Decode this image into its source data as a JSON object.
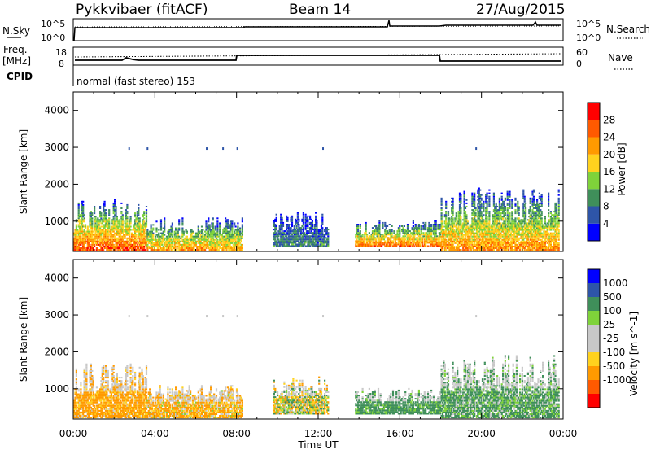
{
  "header": {
    "station": "Pykkvibaer (fitACF)",
    "beam": "Beam 14",
    "date": "27/Aug/2015"
  },
  "top_panel": {
    "left_label": "N.Sky",
    "right_label": "N.Search",
    "left_ticks": [
      "10^5",
      "10^0"
    ],
    "right_ticks": [
      "10^5",
      "10^0"
    ]
  },
  "freq_panel": {
    "left_label_1": "Freq.",
    "left_label_2": "[MHz]",
    "right_label": "Nave",
    "left_ticks": [
      "18",
      "8"
    ],
    "right_ticks": [
      "60",
      "0"
    ],
    "cpid_label": "CPID",
    "cpid_text": "normal (fast stereo) 153"
  },
  "colors": {
    "power_scale": [
      "#0000ff",
      "#2e55a8",
      "#3f8f5a",
      "#7fd33a",
      "#ffd21e",
      "#ff9a00",
      "#ff5a00",
      "#ff0000"
    ],
    "velocity_scale": [
      "#ff0000",
      "#ff5a00",
      "#ff9a00",
      "#ffd21e",
      "#c8c8c8",
      "#c8c8c8",
      "#7fd33a",
      "#3f8f5a",
      "#2e55a8",
      "#0000ff"
    ]
  },
  "chart_data": [
    {
      "type": "heatmap",
      "panel": "power",
      "ylabel": "Slant Range [km]",
      "yticks": [
        "1000",
        "2000",
        "3000",
        "4000"
      ],
      "ylim": [
        180,
        4500
      ],
      "xlim": [
        0,
        24
      ],
      "colorbar_label": "Power [dB]",
      "colorbar_ticks": [
        "4",
        "8",
        "12",
        "16",
        "20",
        "24",
        "28"
      ],
      "colorbar_range": [
        0,
        32
      ],
      "echo_regions": [
        {
          "t_start": 0.0,
          "t_end": 3.6,
          "r_low": 200,
          "r_high": 1600,
          "intensity": 0.75
        },
        {
          "t_start": 3.6,
          "t_end": 8.3,
          "r_low": 200,
          "r_high": 1100,
          "intensity": 0.6
        },
        {
          "t_start": 9.8,
          "t_end": 12.5,
          "r_low": 300,
          "r_high": 1300,
          "intensity": 0.2
        },
        {
          "t_start": 13.8,
          "t_end": 18.0,
          "r_low": 300,
          "r_high": 1000,
          "intensity": 0.7
        },
        {
          "t_start": 18.0,
          "t_end": 23.8,
          "r_low": 200,
          "r_high": 1900,
          "intensity": 0.65
        }
      ]
    },
    {
      "type": "heatmap",
      "panel": "velocity",
      "ylabel": "Slant Range [km]",
      "yticks": [
        "1000",
        "2000",
        "3000",
        "4000"
      ],
      "ylim": [
        180,
        4500
      ],
      "xlim": [
        0,
        24
      ],
      "xticks": [
        "00:00",
        "04:00",
        "08:00",
        "12:00",
        "16:00",
        "20:00",
        "00:00"
      ],
      "xlabel": "Time UT",
      "colorbar_label": "Velocity [m s^-1]",
      "colorbar_ticks": [
        "1000",
        "500",
        "100",
        "25",
        "-25",
        "-100",
        "-500",
        "-1000"
      ],
      "echo_regions": [
        {
          "t_start": 0.0,
          "t_end": 3.6,
          "r_low": 200,
          "r_high": 1700,
          "velocity": -180
        },
        {
          "t_start": 3.6,
          "t_end": 8.3,
          "r_low": 200,
          "r_high": 1100,
          "velocity": -120
        },
        {
          "t_start": 9.8,
          "t_end": 12.5,
          "r_low": 300,
          "r_high": 1300,
          "velocity": 0
        },
        {
          "t_start": 13.8,
          "t_end": 18.0,
          "r_low": 300,
          "r_high": 1000,
          "velocity": 200
        },
        {
          "t_start": 18.0,
          "t_end": 23.8,
          "r_low": 200,
          "r_high": 1900,
          "velocity": 150
        }
      ]
    }
  ]
}
